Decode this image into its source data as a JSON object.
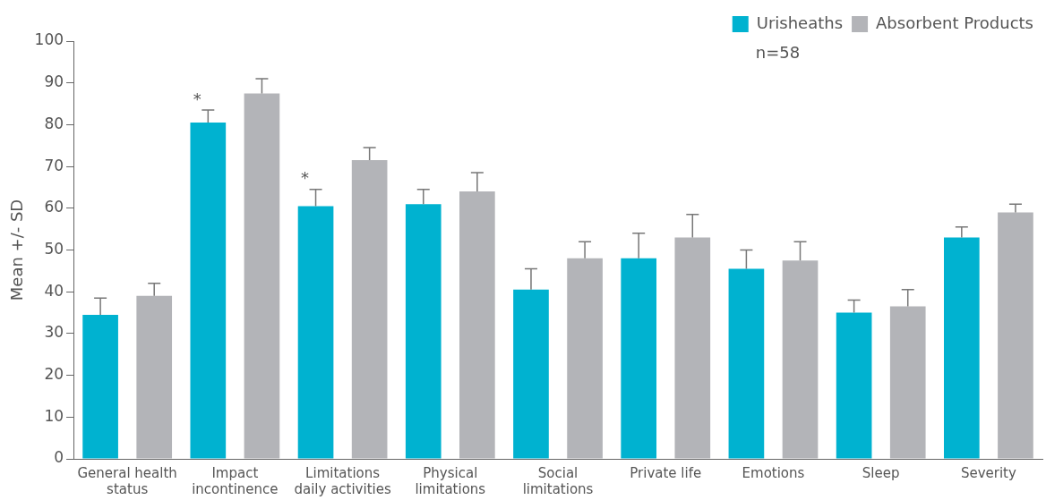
{
  "chart_data": {
    "type": "bar",
    "ylabel": "Mean +/- SD",
    "categories": [
      "General health status",
      "Impact incontinence",
      "Limitations daily activities",
      "Physical limitations",
      "Social limitations",
      "Private life",
      "Emotions",
      "Sleep",
      "Severity"
    ],
    "series": [
      {
        "name": "Urisheaths",
        "color": "#00b2d0",
        "values": [
          34.5,
          80.5,
          60.5,
          61,
          40.5,
          48,
          45.5,
          35,
          53
        ],
        "errors": [
          [
            34.5,
            38.5
          ],
          [
            80.5,
            83.5
          ],
          [
            60.5,
            64.5
          ],
          [
            61,
            64.5
          ],
          [
            40.5,
            45.5
          ],
          [
            48,
            54
          ],
          [
            45.5,
            50
          ],
          [
            35,
            38
          ],
          [
            53,
            55.5
          ]
        ]
      },
      {
        "name": "Absorbent Products",
        "color": "#b3b4b8",
        "values": [
          39,
          87.5,
          71.5,
          64,
          48,
          53,
          47.5,
          36.5,
          59
        ],
        "errors": [
          [
            39,
            42
          ],
          [
            87.5,
            91
          ],
          [
            71.5,
            74.5
          ],
          [
            64,
            68.5
          ],
          [
            48,
            52
          ],
          [
            53,
            58.5
          ],
          [
            47.5,
            52
          ],
          [
            36.5,
            40.5
          ],
          [
            59,
            61
          ]
        ]
      }
    ],
    "ylim": [
      0,
      100
    ],
    "yticks": [
      0,
      10,
      20,
      30,
      40,
      50,
      60,
      70,
      80,
      90,
      100
    ],
    "grid": false,
    "legend": "top right",
    "annotations": [
      "*",
      "*",
      "n=58"
    ]
  }
}
